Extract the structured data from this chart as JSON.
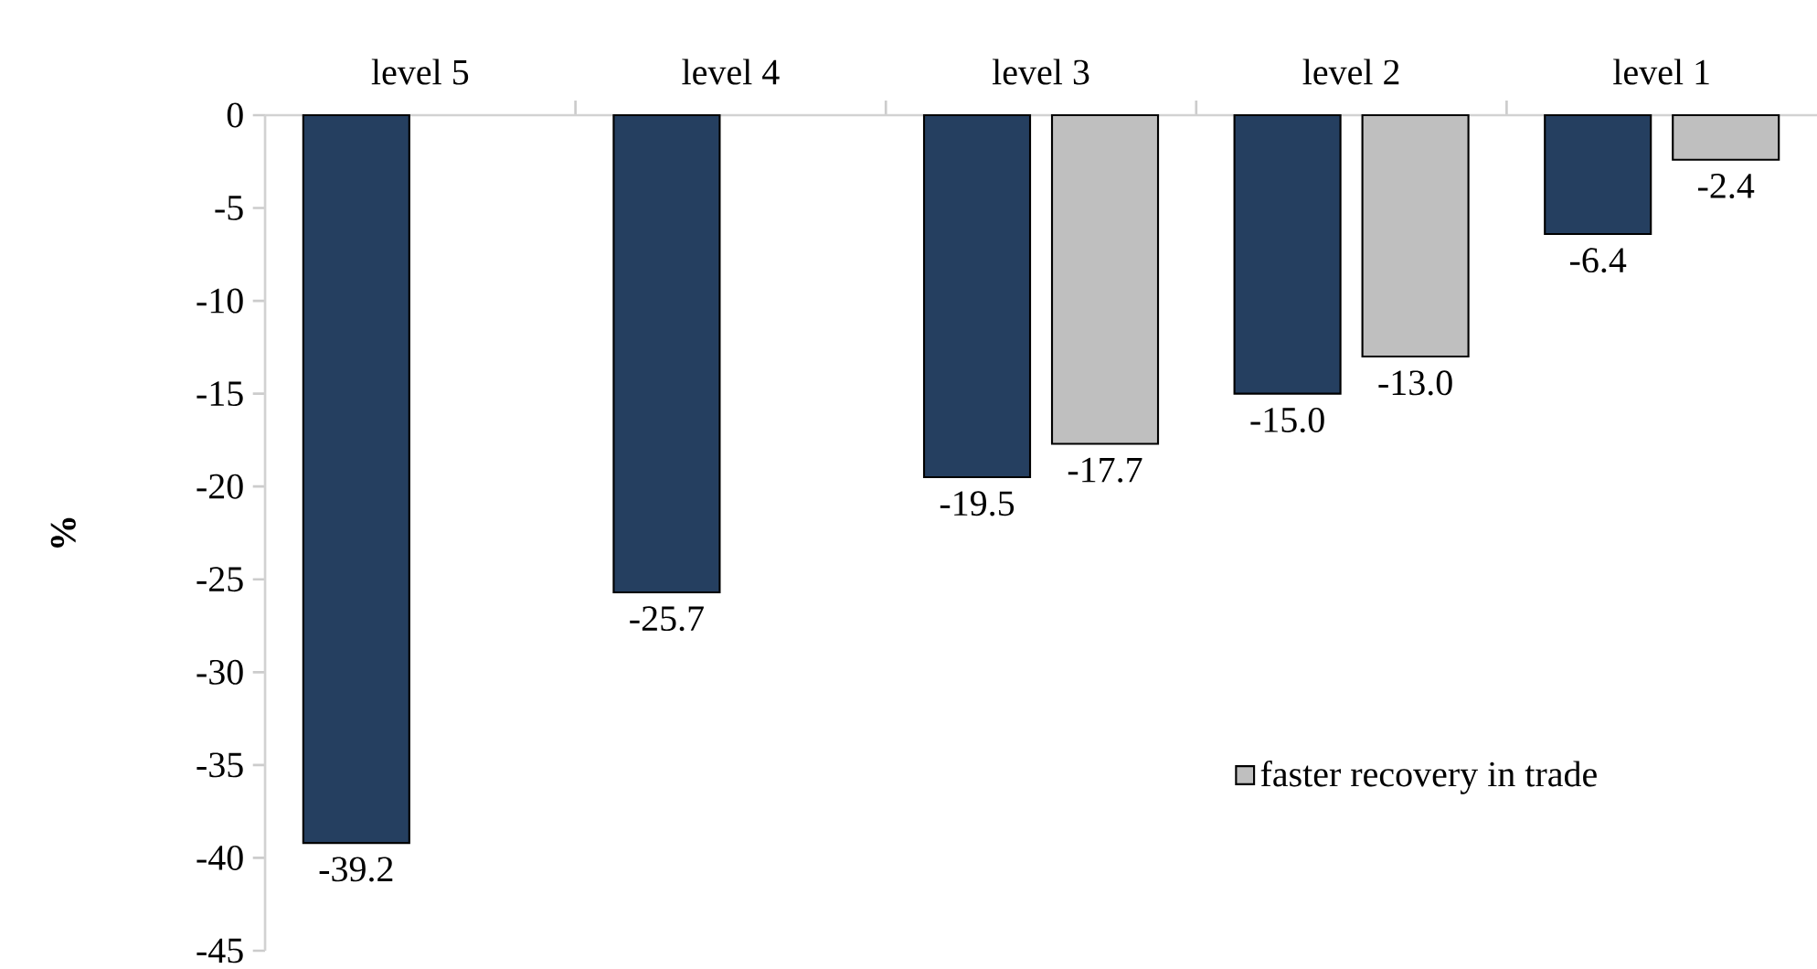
{
  "chart_data": {
    "type": "bar",
    "ylabel": "%",
    "categories": [
      "level 5",
      "level 4",
      "level 3",
      "level  2",
      "level 1"
    ],
    "series": [
      {
        "color": "#253f60",
        "values": [
          -39.2,
          -25.7,
          -19.5,
          -15.0,
          -6.4
        ],
        "value_labels": [
          "-39.2",
          "-25.7",
          "-19.5",
          "-15.0",
          "-6.4"
        ]
      },
      {
        "name": "faster recovery in trade",
        "color": "#bfbfbf",
        "values": [
          null,
          null,
          -17.7,
          -13.0,
          -2.4
        ],
        "value_labels": [
          null,
          null,
          "-17.7",
          "-13.0",
          "-2.4"
        ]
      }
    ],
    "ylim": [
      -45,
      0
    ],
    "yticks": [
      0,
      -5,
      -10,
      -15,
      -20,
      -25,
      -30,
      -35,
      -40,
      -45
    ],
    "legend": "bottom right",
    "grid": false
  }
}
